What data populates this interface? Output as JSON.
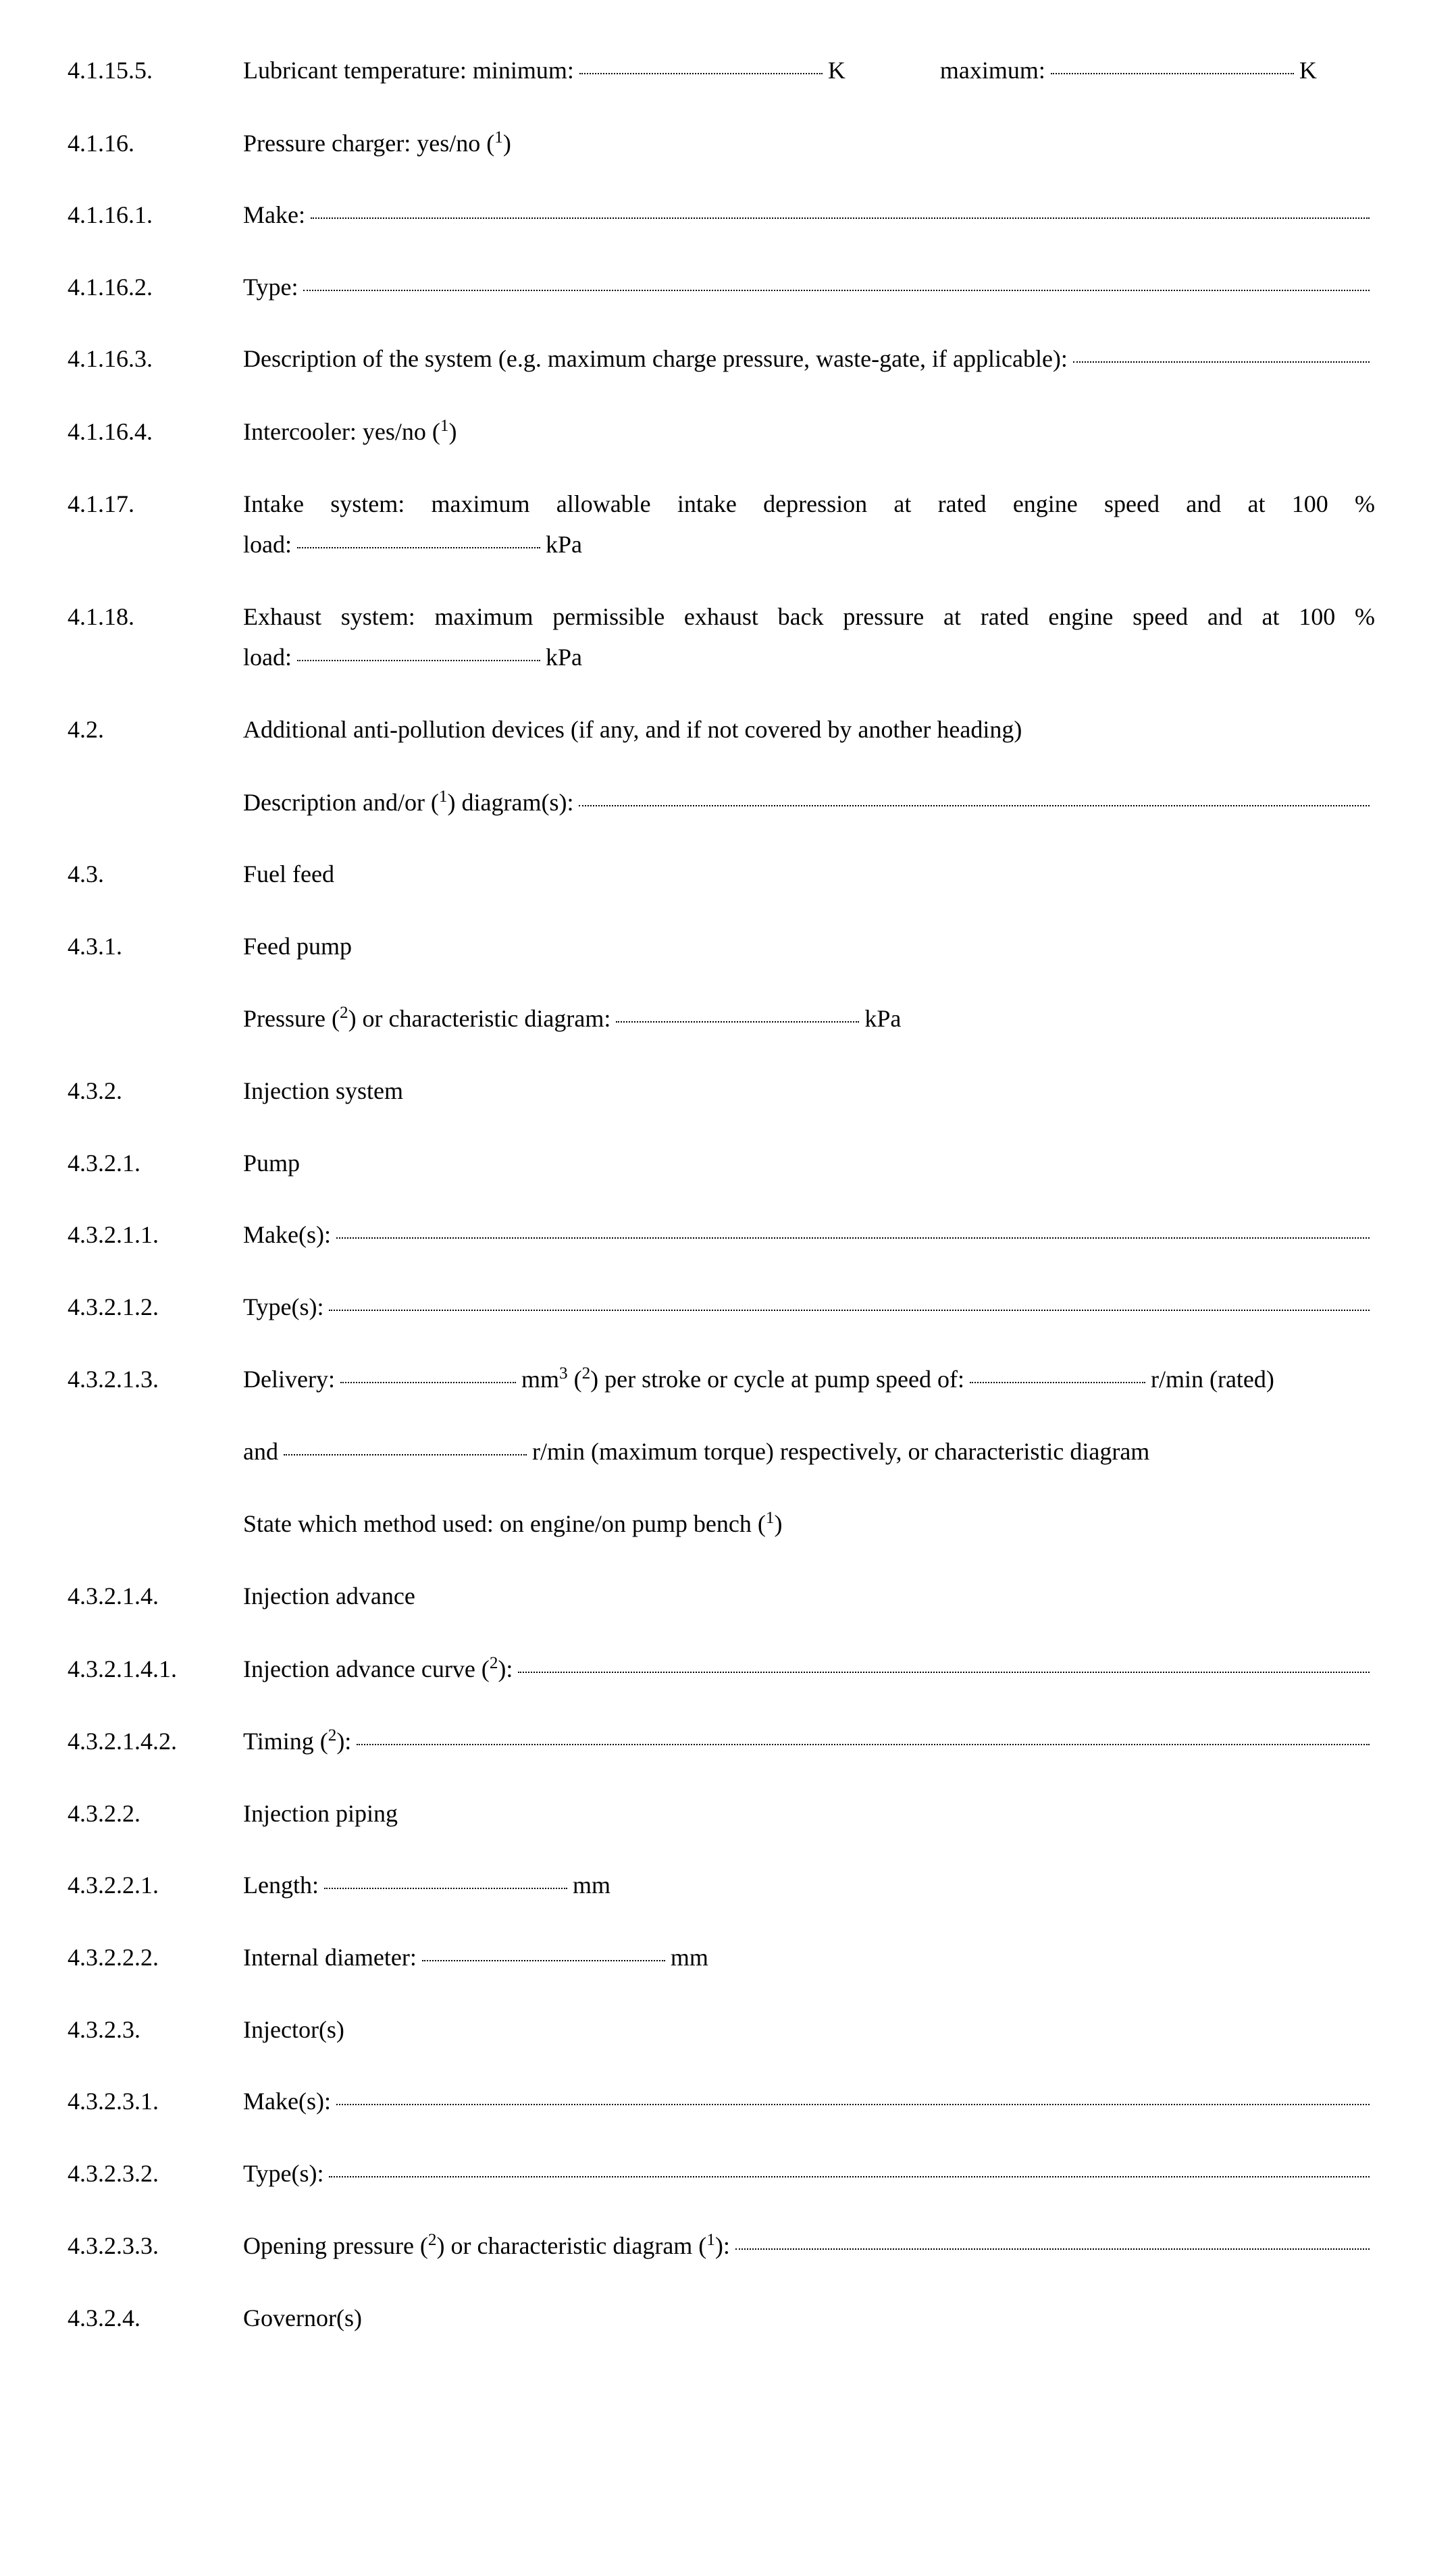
{
  "items": [
    {
      "num": "4.1.15.5.",
      "type": "lubricant"
    },
    {
      "num": "4.1.16.",
      "text": "Pressure charger: yes/no (",
      "sup": "1",
      "tail": ")"
    },
    {
      "num": "4.1.16.1.",
      "text": "Make:",
      "dotsfull": true
    },
    {
      "num": "4.1.16.2.",
      "text": "Type:",
      "dotsfull": true
    },
    {
      "num": "4.1.16.3.",
      "text": "Description of the system (e.g. maximum charge pressure, waste-gate, if applicable):",
      "dotsfull": true,
      "justify": true
    },
    {
      "num": "4.1.16.4.",
      "text": "Intercooler: yes/no (",
      "sup": "1",
      "tail": ")"
    },
    {
      "num": "4.1.17.",
      "type": "twolines",
      "l1a": "Intake system: maximum allowable intake depression at rated engine speed and at 100 %",
      "l2a": "load:",
      "l2unit": " kPa"
    },
    {
      "num": "4.1.18.",
      "type": "twolines",
      "l1a": "Exhaust system: maximum permissible exhaust back pressure at rated engine speed and at 100 %",
      "l2a": "load:",
      "l2unit": " kPa"
    },
    {
      "num": "4.2.",
      "text": "Additional anti-pollution devices (if any, and if not covered by another heading)"
    },
    {
      "num": "",
      "text": "Description and/or (",
      "sup": "1",
      "tail": ") diagram(s):",
      "dotsfull": true
    },
    {
      "num": "4.3.",
      "text": "Fuel feed"
    },
    {
      "num": "4.3.1.",
      "text": "Feed pump"
    },
    {
      "num": "",
      "type": "pressure"
    },
    {
      "num": "4.3.2.",
      "text": "Injection system"
    },
    {
      "num": "4.3.2.1.",
      "text": "Pump"
    },
    {
      "num": "4.3.2.1.1.",
      "text": "Make(s):",
      "dotsfull": true
    },
    {
      "num": "4.3.2.1.2.",
      "text": "Type(s):",
      "dotsfull": true
    },
    {
      "num": "4.3.2.1.3.",
      "type": "delivery"
    },
    {
      "num": "",
      "type": "delivery2"
    },
    {
      "num": "",
      "text": "State which method used: on engine/on pump bench (",
      "sup": "1",
      "tail": ")"
    },
    {
      "num": "4.3.2.1.4.",
      "text": "Injection advance"
    },
    {
      "num": "4.3.2.1.4.1.",
      "text": "Injection advance curve (",
      "sup": "2",
      "tail": "):",
      "dotsfull": true
    },
    {
      "num": "4.3.2.1.4.2.",
      "text": "Timing (",
      "sup": "2",
      "tail": "):",
      "dotsfull": true
    },
    {
      "num": "4.3.2.2.",
      "text": "Injection piping"
    },
    {
      "num": "4.3.2.2.1.",
      "type": "shortunit",
      "label": "Length:",
      "unit": " mm"
    },
    {
      "num": "4.3.2.2.2.",
      "type": "shortunit",
      "label": "Internal diameter:",
      "unit": " mm"
    },
    {
      "num": "4.3.2.3.",
      "text": "Injector(s)"
    },
    {
      "num": "4.3.2.3.1.",
      "text": "Make(s):",
      "dotsfull": true
    },
    {
      "num": "4.3.2.3.2.",
      "text": "Type(s):",
      "dotsfull": true
    },
    {
      "num": "4.3.2.3.3.",
      "type": "opening"
    },
    {
      "num": "4.3.2.4.",
      "text": "Governor(s)"
    }
  ],
  "strings": {
    "lubricant_label": "Lubricant temperature: minimum:",
    "K1": " K",
    "maximum": "maximum:",
    "K2": " K",
    "pressure_a": "Pressure (",
    "pressure_sup": "2",
    "pressure_b": ") or characteristic diagram:",
    "pressure_unit": " kPa",
    "delivery_a": "Delivery:",
    "delivery_b": " mm",
    "delivery_sup3": "3",
    "delivery_c": " (",
    "delivery_sup2": "2",
    "delivery_d": ") per stroke or cycle at pump speed of:",
    "delivery_e": " r/min (rated)",
    "delivery2_a": "and",
    "delivery2_b": " r/min (maximum torque) respectively, or characteristic diagram",
    "opening_a": "Opening pressure (",
    "opening_s1": "2",
    "opening_b": ") or characteristic diagram (",
    "opening_s2": "1",
    "opening_c": "):"
  }
}
